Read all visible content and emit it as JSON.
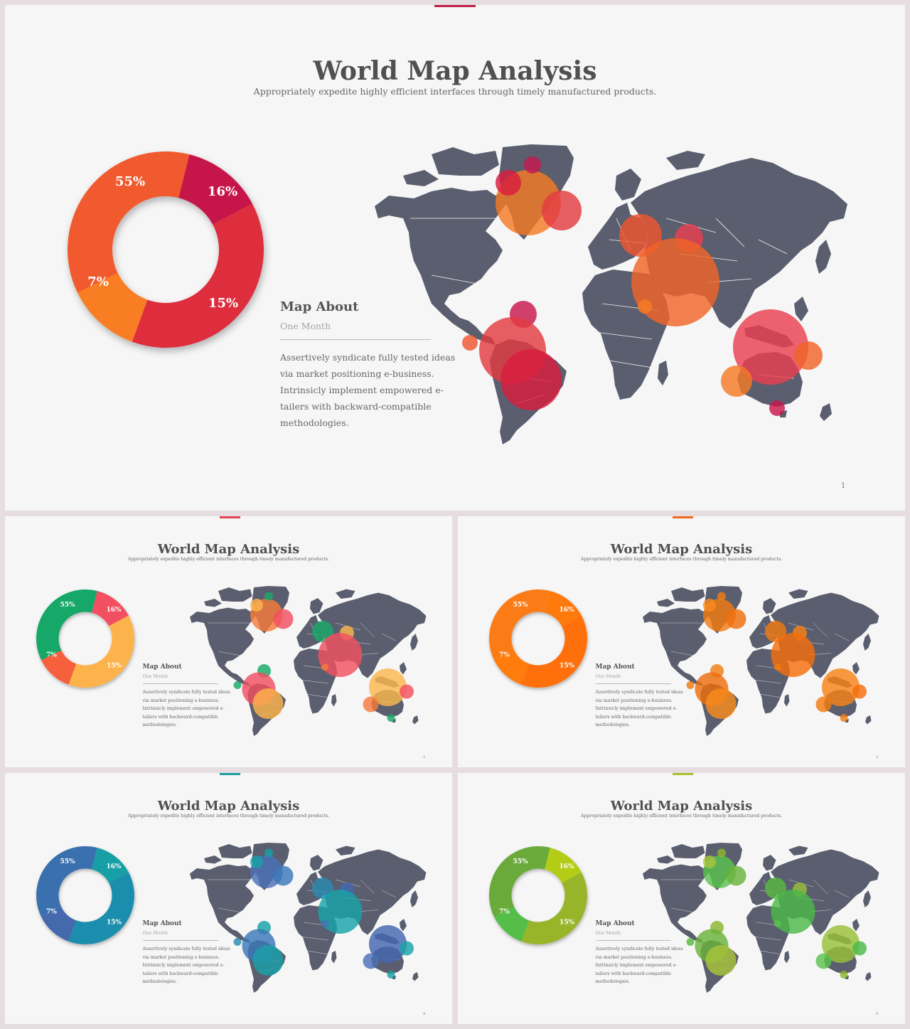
{
  "slides": [
    {
      "title": "World Map Analysis",
      "subtitle": "Appropriately expedite highly efficient interfaces through timely manufactured products.",
      "page": "1",
      "accent": "#c0204a",
      "donut": [
        {
          "label": "16%",
          "color": "#c6174a"
        },
        {
          "label": "15%",
          "color": "#de2e3d"
        },
        {
          "label": "7%",
          "color": "#f97d24"
        },
        {
          "label": "55%",
          "color": "#f15a2e"
        }
      ],
      "bubble_colors": [
        "#f57a26",
        "#c8174e",
        "#e23b41",
        "#d91d3e",
        "#f0552f",
        "#ea3f4f",
        "#f06428"
      ],
      "map_about": {
        "heading": "Map About",
        "subheading": "One Month",
        "body_lines": [
          "Assertively syndicate fully  tested ideas",
          "via market positioning e-business.",
          "Intrinsicly implement empowered e-",
          "tailers with backward-compatible",
          "methodologies."
        ]
      }
    },
    {
      "title": "World Map Analysis",
      "subtitle": "Appropriately expedite highly efficient interfaces through timely manufactured products.",
      "page": "2",
      "accent": "#e2434f",
      "donut": [
        {
          "label": "16%",
          "color": "#f25060"
        },
        {
          "label": "15%",
          "color": "#fdb34c"
        },
        {
          "label": "7%",
          "color": "#f7613c"
        },
        {
          "label": "55%",
          "color": "#18a867"
        }
      ],
      "bubble_colors": [
        "#f77a3a",
        "#18a867",
        "#f24f60",
        "#fdb34c",
        "#19a868",
        "#fbb74e",
        "#f25060"
      ],
      "map_about": {
        "heading": "Map About",
        "subheading": "One Month",
        "body_lines": [
          "Assertively syndicate fully  tested ideas",
          "via market positioning e-business.",
          "Intrinsicly implement empowered e-",
          "tailers with backward-compatible",
          "methodologies."
        ]
      }
    },
    {
      "title": "World Map Analysis",
      "subtitle": "Appropriately expedite highly efficient interfaces through timely manufactured products.",
      "page": "3",
      "accent": "#f06a1c",
      "donut": [
        {
          "label": "16%",
          "color": "#ff7a0c"
        },
        {
          "label": "15%",
          "color": "#ff7008"
        },
        {
          "label": "7%",
          "color": "#ff7c10"
        },
        {
          "label": "55%",
          "color": "#fb7b14"
        }
      ],
      "bubble_colors": [
        "#f47a10",
        "#f07d15",
        "#ee6e0c",
        "#f98b1c",
        "#f27910",
        "#f78215",
        "#f46e0c"
      ],
      "map_about": {
        "heading": "Map About",
        "subheading": "One Month",
        "body_lines": [
          "Assertively syndicate fully  tested ideas",
          "via market positioning e-business.",
          "Intrinsicly implement empowered e-",
          "tailers with backward-compatible",
          "methodologies."
        ]
      }
    },
    {
      "title": "World Map Analysis",
      "subtitle": "Appropriately expedite highly efficient interfaces through timely manufactured products.",
      "page": "4",
      "accent": "#1ea0a0",
      "donut": [
        {
          "label": "16%",
          "color": "#14a0a6"
        },
        {
          "label": "15%",
          "color": "#1d8ead"
        },
        {
          "label": "7%",
          "color": "#4569ad"
        },
        {
          "label": "55%",
          "color": "#3a6fae"
        }
      ],
      "bubble_colors": [
        "#4a70b8",
        "#16a0a6",
        "#3a78b8",
        "#1aa0a8",
        "#2a8ab0",
        "#4466b0",
        "#18a2a8"
      ],
      "map_about": {
        "heading": "Map About",
        "subheading": "One Month",
        "body_lines": [
          "Assertively syndicate fully  tested ideas",
          "via market positioning e-business.",
          "Intrinsicly implement empowered e-",
          "tailers with backward-compatible",
          "methodologies."
        ]
      }
    },
    {
      "title": "World Map Analysis",
      "subtitle": "Appropriately expedite highly efficient interfaces through timely manufactured products.",
      "page": "5",
      "accent": "#a8c030",
      "donut": [
        {
          "label": "16%",
          "color": "#b4cc18"
        },
        {
          "label": "15%",
          "color": "#98b52c"
        },
        {
          "label": "7%",
          "color": "#54be4a"
        },
        {
          "label": "55%",
          "color": "#6aaa3a"
        }
      ],
      "bubble_colors": [
        "#5cc24e",
        "#8ab62e",
        "#6ab23a",
        "#a8c43a",
        "#58b842",
        "#98c038",
        "#4cb848"
      ],
      "map_about": {
        "heading": "Map About",
        "subheading": "One Month",
        "body_lines": [
          "Assertively syndicate fully  tested ideas",
          "via market positioning e-business.",
          "Intrinsicly implement empowered e-",
          "tailers with backward-compatible",
          "methodologies."
        ]
      }
    }
  ]
}
